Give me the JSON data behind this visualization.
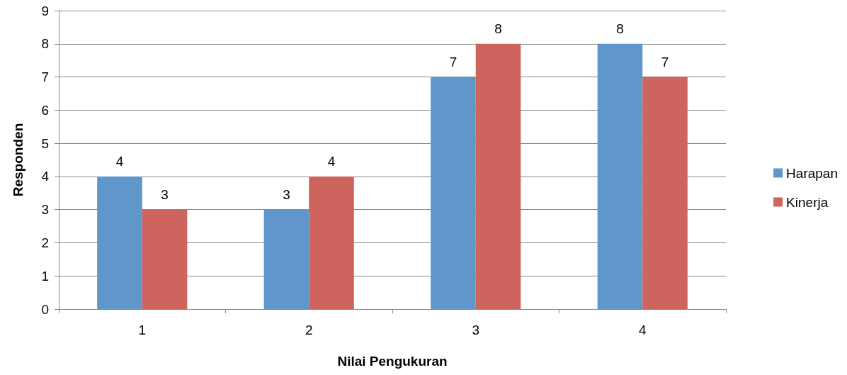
{
  "chart_data": {
    "type": "bar",
    "xlabel": "Nilai Pengukuran",
    "ylabel": "Responden",
    "categories": [
      "1",
      "2",
      "3",
      "4"
    ],
    "series": [
      {
        "name": "Harapan",
        "color": "#6097ca",
        "values": [
          4,
          3,
          7,
          8
        ]
      },
      {
        "name": "Kinerja",
        "color": "#cd655e",
        "values": [
          3,
          4,
          8,
          7
        ]
      }
    ],
    "ylim": [
      0,
      9
    ],
    "yticks": [
      0,
      1,
      2,
      3,
      4,
      5,
      6,
      7,
      8,
      9
    ],
    "grid": "y",
    "legend": "right",
    "data_labels": true
  }
}
